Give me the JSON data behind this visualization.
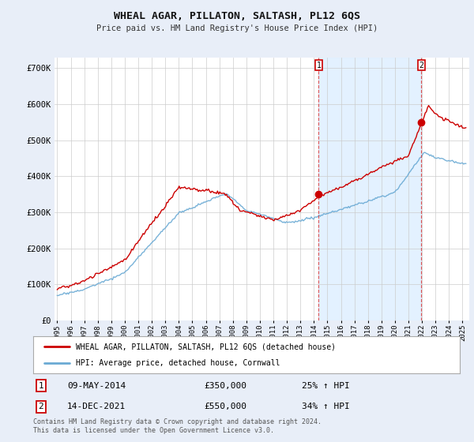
{
  "title": "WHEAL AGAR, PILLATON, SALTASH, PL12 6QS",
  "subtitle": "Price paid vs. HM Land Registry's House Price Index (HPI)",
  "ylabel_ticks": [
    "£0",
    "£100K",
    "£200K",
    "£300K",
    "£400K",
    "£500K",
    "£600K",
    "£700K"
  ],
  "ytick_values": [
    0,
    100000,
    200000,
    300000,
    400000,
    500000,
    600000,
    700000
  ],
  "ylim": [
    0,
    730000
  ],
  "xlim_start": 1994.8,
  "xlim_end": 2025.5,
  "hpi_color": "#6aaad4",
  "price_color": "#cc0000",
  "marker1_date": 2014.36,
  "marker1_value": 350000,
  "marker2_date": 2021.95,
  "marker2_value": 550000,
  "shade_color": "#ddeeff",
  "legend_label1": "WHEAL AGAR, PILLATON, SALTASH, PL12 6QS (detached house)",
  "legend_label2": "HPI: Average price, detached house, Cornwall",
  "annotation1_num": "1",
  "annotation1_date": "09-MAY-2014",
  "annotation1_price": "£350,000",
  "annotation1_hpi": "25% ↑ HPI",
  "annotation2_num": "2",
  "annotation2_date": "14-DEC-2021",
  "annotation2_price": "£550,000",
  "annotation2_hpi": "34% ↑ HPI",
  "footer1": "Contains HM Land Registry data © Crown copyright and database right 2024.",
  "footer2": "This data is licensed under the Open Government Licence v3.0.",
  "background_color": "#e8eef8",
  "plot_bg_color": "#ffffff",
  "grid_color": "#cccccc"
}
